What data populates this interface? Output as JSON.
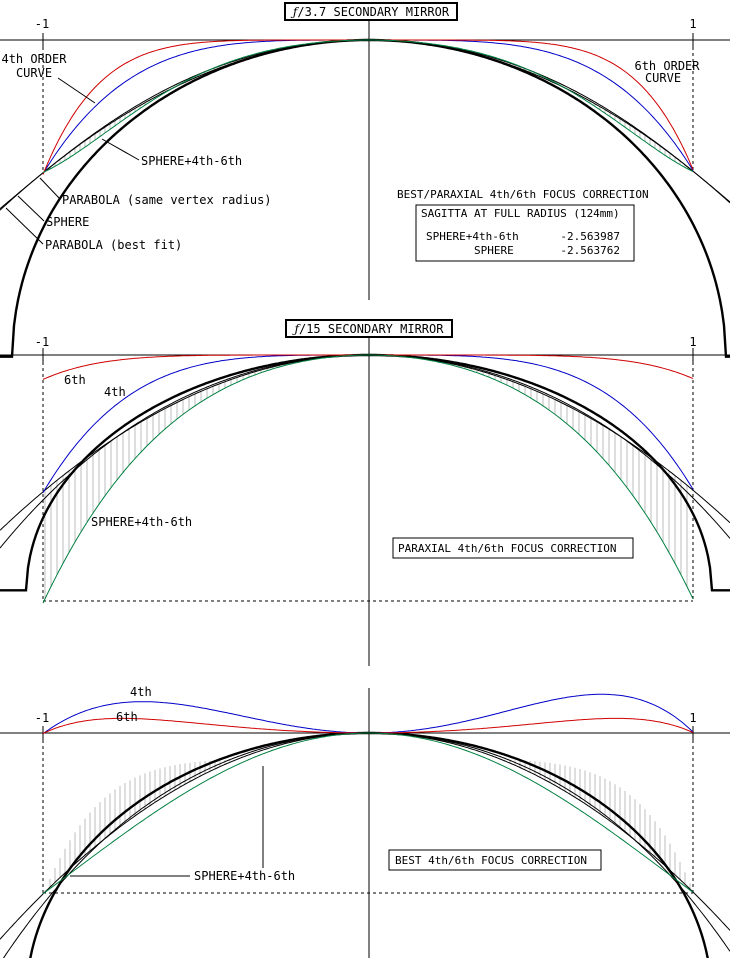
{
  "panel1": {
    "title_f": "ƒ",
    "title_rest": "/3.7 SECONDARY MIRROR",
    "tick_left": "-1",
    "tick_right": "1",
    "label_4th_line1": "4th ORDER",
    "label_4th_line2": "CURVE",
    "label_6th_line1": "6th ORDER",
    "label_6th_line2": "CURVE",
    "label_sphere46": "SPHERE+4th-6th",
    "label_parabola_same": "PARABOLA (same vertex radius)",
    "label_sphere": "SPHERE",
    "label_parabola_best": "PARABOLA (best fit)",
    "correction": "BEST/PARAXIAL 4th/6th FOCUS CORRECTION",
    "sagitta_title": "SAGITTA AT FULL RADIUS (124mm)",
    "sagitta_row1_name": "SPHERE+4th-6th",
    "sagitta_row1_value": "-2.563987",
    "sagitta_row2_name": "SPHERE",
    "sagitta_row2_value": "-2.563762"
  },
  "panel2": {
    "title_f": "ƒ",
    "title_rest": "/15 SECONDARY MIRROR",
    "tick_left": "-1",
    "tick_right": "1",
    "label_6th": "6th",
    "label_4th": "4th",
    "label_sphere46": "SPHERE+4th-6th",
    "correction": "PARAXIAL 4th/6th FOCUS CORRECTION"
  },
  "panel3": {
    "tick_left": "-1",
    "tick_right": "1",
    "label_4th": "4th",
    "label_6th": "6th",
    "label_sphere46": "SPHERE+4th-6th",
    "correction": "BEST 4th/6th FOCUS CORRECTION"
  },
  "colors": {
    "fourth": "#0000c8",
    "sixth": "#d00000",
    "sphere46": "#008040",
    "axis": "#000000",
    "hatch": "#a0a0a0"
  }
}
